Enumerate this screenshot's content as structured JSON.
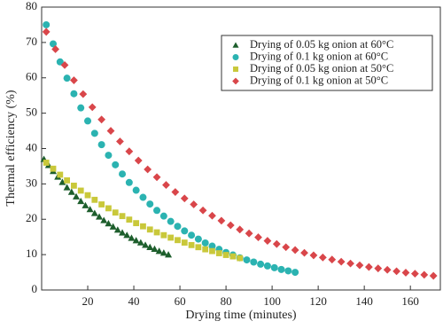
{
  "chart_data": {
    "type": "scatter",
    "x_label": "Drying time (minutes)",
    "y_label": "Thermal efficiency (%)",
    "xlim": [
      0,
      173
    ],
    "ylim": [
      0,
      80
    ],
    "xticks": [
      20,
      40,
      60,
      80,
      100,
      120,
      140,
      160
    ],
    "yticks": [
      0,
      10,
      20,
      30,
      40,
      50,
      60,
      70,
      80
    ],
    "legend": "upper right",
    "series": [
      {
        "name": "Drying of  0.05 kg onion at 60°C",
        "color": "#1d5e2c",
        "marker": "triangle",
        "x": [
          1,
          3,
          5,
          7,
          9,
          11,
          13,
          15,
          17,
          19,
          21,
          23,
          25,
          27,
          29,
          31,
          33,
          35,
          37,
          39,
          41,
          43,
          45,
          47,
          49,
          51,
          53,
          55
        ],
        "values": [
          37,
          35.3,
          33.6,
          32,
          30.5,
          29,
          27.7,
          26.4,
          25.1,
          23.9,
          22.8,
          21.7,
          20.7,
          19.7,
          18.8,
          17.9,
          17,
          16.2,
          15.5,
          14.7,
          14,
          13.4,
          12.7,
          12.1,
          11.6,
          11,
          10.5,
          10
        ]
      },
      {
        "name": "Drying of  0.1 kg onion at 60°C",
        "color": "#2bb3b1",
        "marker": "circle",
        "x": [
          2,
          5,
          8,
          11,
          14,
          17,
          20,
          23,
          26,
          29,
          32,
          35,
          38,
          41,
          44,
          47,
          50,
          53,
          56,
          59,
          62,
          65,
          68,
          71,
          74,
          77,
          80,
          83,
          86,
          89,
          92,
          95,
          98,
          101,
          104,
          107,
          110
        ],
        "values": [
          75,
          69.6,
          64.5,
          59.9,
          55.5,
          51.5,
          47.8,
          44.3,
          41.1,
          38.1,
          35.4,
          32.8,
          30.4,
          28.2,
          26.2,
          24.3,
          22.5,
          20.9,
          19.4,
          18,
          16.7,
          15.5,
          14.4,
          13.3,
          12.4,
          11.5,
          10.6,
          9.9,
          9.1,
          8.5,
          7.9,
          7.3,
          6.8,
          6.3,
          5.8,
          5.4,
          5
        ]
      },
      {
        "name": "Drying of  0.05 kg onion at 50°C",
        "color": "#c9c83a",
        "marker": "square",
        "x": [
          2,
          5,
          8,
          11,
          14,
          17,
          20,
          23,
          26,
          29,
          32,
          35,
          38,
          41,
          44,
          47,
          50,
          53,
          56,
          59,
          62,
          65,
          68,
          71,
          74,
          77,
          80,
          83,
          86
        ],
        "values": [
          36,
          34.3,
          32.6,
          31,
          29.5,
          28.1,
          26.8,
          25.5,
          24.2,
          23.1,
          21.9,
          20.9,
          19.9,
          18.9,
          18,
          17.1,
          16.3,
          15.5,
          14.8,
          14.1,
          13.4,
          12.7,
          12.1,
          11.5,
          11,
          10.4,
          9.9,
          9.5,
          9
        ]
      },
      {
        "name": "Drying of  0.1 kg onion at 50°C",
        "color": "#d9464a",
        "marker": "diamond",
        "x": [
          2,
          6,
          10,
          14,
          18,
          22,
          26,
          30,
          34,
          38,
          42,
          46,
          50,
          54,
          58,
          62,
          66,
          70,
          74,
          78,
          82,
          86,
          90,
          94,
          98,
          102,
          106,
          110,
          114,
          118,
          122,
          126,
          130,
          134,
          138,
          142,
          146,
          150,
          154,
          158,
          162,
          166,
          170
        ],
        "values": [
          73,
          68.1,
          63.6,
          59.3,
          55.4,
          51.7,
          48.2,
          45,
          42,
          39.2,
          36.6,
          34.1,
          31.9,
          29.7,
          27.7,
          25.9,
          24.2,
          22.5,
          21,
          19.6,
          18.3,
          17.1,
          16,
          14.9,
          13.9,
          13,
          12.1,
          11.3,
          10.5,
          9.8,
          9.2,
          8.6,
          8,
          7.5,
          7,
          6.5,
          6.1,
          5.7,
          5.3,
          4.9,
          4.6,
          4.3,
          4
        ]
      }
    ]
  }
}
